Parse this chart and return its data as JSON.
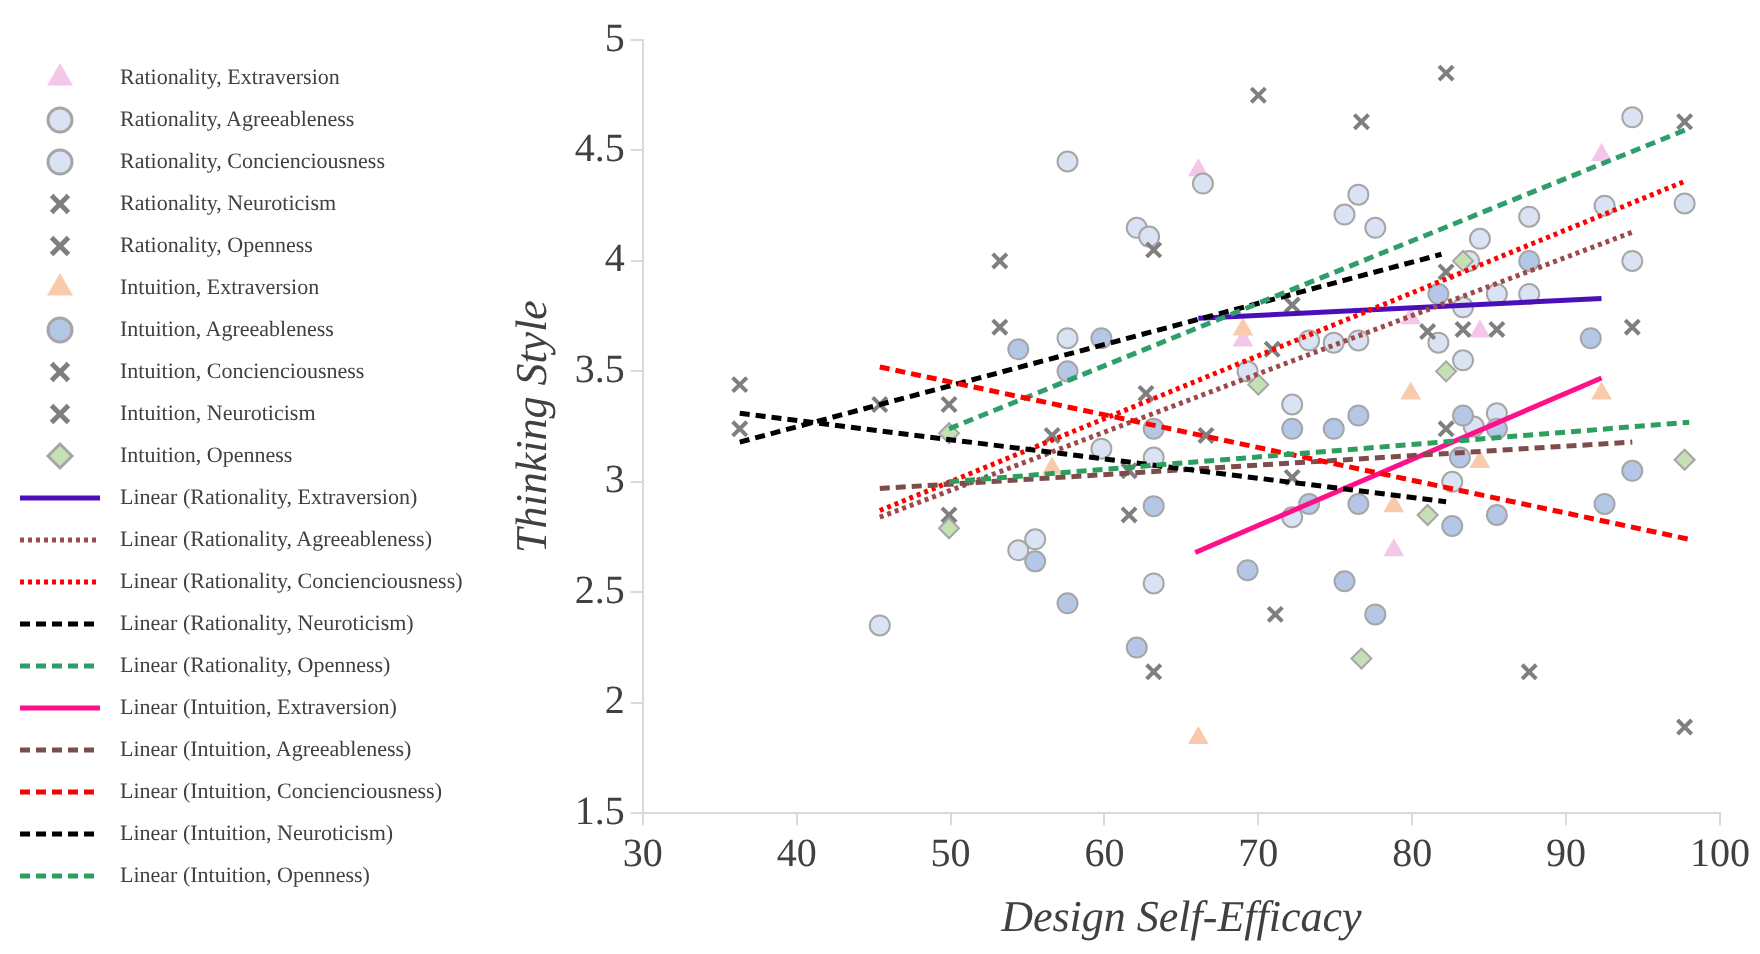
{
  "chart_data": {
    "type": "scatter",
    "xlabel": "Design Self-Efficacy",
    "ylabel": "Thinking Style",
    "xlim": [
      30,
      100
    ],
    "ylim": [
      1.5,
      5
    ],
    "xticks": [
      30,
      40,
      50,
      60,
      70,
      80,
      90,
      100
    ],
    "yticks": [
      1.5,
      2,
      2.5,
      3,
      3.5,
      4,
      4.5,
      5
    ],
    "grid": false,
    "legend": "left",
    "series": [
      {
        "name": "Rationality, Extraversion",
        "color": "#f4c6e8",
        "marker": "triangle",
        "x": [
          66.1,
          92.3,
          69,
          84.4,
          79.9,
          78.8
        ],
        "values": [
          4.41,
          4.48,
          3.64,
          3.68,
          3.74,
          2.69
        ]
      },
      {
        "name": "Rationality, Agreeableness",
        "color": "#dae3f3",
        "marker": "circle",
        "x": [
          57.6,
          62.1,
          57.6,
          63.2,
          55.5,
          63.2,
          75.6,
          94.3,
          97.7,
          84.4,
          94.3,
          87.6,
          73.3,
          76.5,
          83.3,
          72.2,
          84,
          82.6
        ],
        "values": [
          4.45,
          4.15,
          3.65,
          3.11,
          2.74,
          2.54,
          4.21,
          4.65,
          4.26,
          4.1,
          4.0,
          3.85,
          3.64,
          3.64,
          3.55,
          3.35,
          3.25,
          3.0
        ]
      },
      {
        "name": "Rationality, Concienciousness",
        "color": "#dae3f3",
        "marker": "circle",
        "x": [
          66.4,
          62.9,
          59.8,
          54.4,
          45.4,
          76.5,
          77.6,
          92.5,
          87.6,
          83.7,
          85.5,
          83.3,
          74.9,
          81.7,
          69.3,
          85.5,
          72.2
        ],
        "values": [
          4.35,
          4.11,
          3.15,
          2.69,
          2.35,
          4.3,
          4.15,
          4.25,
          4.2,
          4.0,
          3.85,
          3.79,
          3.63,
          3.63,
          3.5,
          3.31,
          2.84
        ]
      },
      {
        "name": "Rationality, Neuroticism",
        "color": "#7f7f7f",
        "marker": "cross",
        "x": [
          36.3,
          45.4,
          53.2,
          63.2,
          72.2,
          82.2,
          70
        ],
        "values": [
          3.24,
          3.35,
          3.7,
          4.05,
          3.8,
          3.95,
          4.75
        ]
      },
      {
        "name": "Rationality, Openness",
        "color": "#7f7f7f",
        "marker": "cross",
        "x": [
          53.2,
          76.7,
          97.7,
          82.2,
          83.3,
          94.3,
          62.7
        ],
        "values": [
          4.0,
          4.63,
          4.63,
          4.85,
          3.69,
          3.7,
          3.4
        ]
      },
      {
        "name": "Intuition, Extraversion",
        "color": "#f8cbad",
        "marker": "triangle",
        "x": [
          66.1,
          69,
          79.9,
          92.3,
          78.8,
          84.4,
          56.6
        ],
        "values": [
          1.84,
          3.69,
          3.4,
          3.4,
          2.89,
          3.09,
          3.06
        ]
      },
      {
        "name": "Intuition, Agreeableness",
        "color": "#b4c7e7",
        "marker": "circle",
        "x": [
          57.6,
          54.4,
          59.8,
          63.2,
          63.2,
          55.5,
          57.6,
          62.1,
          87.6,
          81.7,
          91.6,
          72.2,
          74.9,
          76.5,
          83.3,
          85.5,
          83.1,
          94.3,
          73.3,
          76.5,
          82.6,
          85.5,
          92.5,
          69.3,
          75.6,
          77.6
        ],
        "values": [
          3.5,
          3.6,
          3.65,
          3.24,
          2.89,
          2.64,
          2.45,
          2.25,
          4.0,
          3.85,
          3.65,
          3.24,
          3.24,
          3.3,
          3.3,
          3.24,
          3.11,
          3.05,
          2.9,
          2.9,
          2.8,
          2.85,
          2.9,
          2.6,
          2.55,
          2.4
        ]
      },
      {
        "name": "Intuition, Concienciousness",
        "color": "#7f7f7f",
        "marker": "cross",
        "x": [
          49.9,
          61.6,
          66.6,
          81,
          87.6,
          97.7,
          71.1
        ],
        "values": [
          3.35,
          2.85,
          3.21,
          3.68,
          2.14,
          1.89,
          2.4
        ]
      },
      {
        "name": "Intuition, Neuroticism",
        "color": "#7f7f7f",
        "marker": "cross",
        "x": [
          36.3,
          49.9,
          56.6,
          61.6,
          63.2,
          72.2,
          70.9,
          82.2,
          85.5
        ],
        "values": [
          3.44,
          2.85,
          3.21,
          3.05,
          2.14,
          3.02,
          3.6,
          3.24,
          3.69
        ]
      },
      {
        "name": "Intuition, Openness",
        "color": "#c5e0b4",
        "marker": "diamond",
        "x": [
          49.9,
          49.9,
          70,
          83.3,
          82.2,
          97.7,
          81,
          76.7
        ],
        "values": [
          3.22,
          2.79,
          3.44,
          4.0,
          3.5,
          3.1,
          2.85,
          2.2
        ]
      },
      {
        "name": "Linear (Rationality, Extraversion)",
        "type": "line",
        "line_style": "solid",
        "color": "#4b0fb8",
        "x": [
          66.1,
          92.3
        ],
        "values": [
          3.74,
          3.83
        ]
      },
      {
        "name": "Linear (Rationality, Agreeableness)",
        "type": "line",
        "line_style": "dotted",
        "color": "#9e4a4a",
        "x": [
          45.4,
          94.3
        ],
        "values": [
          2.84,
          4.13
        ]
      },
      {
        "name": "Linear (Rationality, Concienciousness)",
        "type": "line",
        "line_style": "dotted",
        "color": "#ff0000",
        "x": [
          45.4,
          97.7
        ],
        "values": [
          2.87,
          4.36
        ]
      },
      {
        "name": "Linear (Rationality, Neuroticism)",
        "type": "line",
        "line_style": "dashed",
        "color": "#000000",
        "x": [
          36.3,
          81.9
        ],
        "values": [
          3.18,
          4.03
        ]
      },
      {
        "name": "Linear (Rationality, Openness)",
        "type": "line",
        "line_style": "dashed",
        "color": "#2e9e6b",
        "x": [
          49.9,
          98
        ],
        "values": [
          3.24,
          4.6
        ]
      },
      {
        "name": "Linear (Intuition, Extraversion)",
        "type": "line",
        "line_style": "solid",
        "color": "#ff0f8c",
        "x": [
          65.9,
          92.3
        ],
        "values": [
          2.68,
          3.47
        ]
      },
      {
        "name": "Linear (Intuition, Agreeableness)",
        "type": "line",
        "line_style": "dashed",
        "color": "#7f4c4c",
        "x": [
          45.4,
          94.3
        ],
        "values": [
          2.97,
          3.18
        ]
      },
      {
        "name": "Linear (Intuition, Concienciousness)",
        "type": "line",
        "line_style": "dashed",
        "color": "#ff0000",
        "x": [
          45.4,
          98
        ],
        "values": [
          3.52,
          2.74
        ]
      },
      {
        "name": "Linear (Intuition, Neuroticism)",
        "type": "line",
        "line_style": "dashed",
        "color": "#000000",
        "x": [
          36.3,
          82.2
        ],
        "values": [
          3.31,
          2.91
        ]
      },
      {
        "name": "Linear (Intuition, Openness)",
        "type": "line",
        "line_style": "dashed",
        "color": "#2e9e5e",
        "x": [
          49.9,
          98
        ],
        "values": [
          3.0,
          3.27
        ]
      }
    ]
  }
}
